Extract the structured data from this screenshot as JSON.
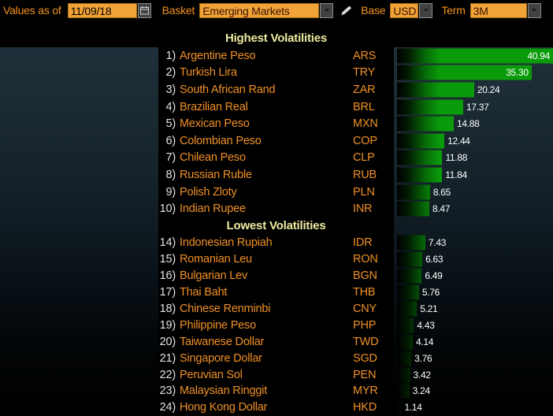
{
  "toolbar": {
    "values_as_of_label": "Values as of",
    "date_value": "11/09/18",
    "basket_label": "Basket",
    "basket_value": "Emerging Markets",
    "base_label": "Base",
    "base_value": "USD",
    "term_label": "Term",
    "term_value": "3M"
  },
  "icons": {
    "calendar": "calendar-icon",
    "basket_dropdown": "chevron-down-icon",
    "base_dropdown": "chevron-down-icon",
    "term_dropdown": "chevron-down-icon",
    "edit": "pencil-icon"
  },
  "colors": {
    "background": "#000000",
    "accent_orange_text": "#f09025",
    "field_orange": "#f2a338",
    "bar_green": "#0a9b0a",
    "section_title_yellow": "#eeeb9f",
    "value_text_white": "#ffffff",
    "rank_text": "#e3e3e3",
    "plot_panel_top": "#20303a"
  },
  "chart_data": {
    "type": "bar",
    "orientation": "horizontal",
    "xlim": [
      0,
      40.94
    ],
    "grid": false,
    "legend": false,
    "sections": [
      {
        "title": "Highest Volatilities",
        "rows": [
          {
            "rank": "1)",
            "name": "Argentine Peso",
            "code": "ARS",
            "value": 40.94,
            "value_label": "40.94"
          },
          {
            "rank": "2)",
            "name": "Turkish Lira",
            "code": "TRY",
            "value": 35.3,
            "value_label": "35.30"
          },
          {
            "rank": "3)",
            "name": "South African Rand",
            "code": "ZAR",
            "value": 20.24,
            "value_label": "20.24"
          },
          {
            "rank": "4)",
            "name": "Brazilian Real",
            "code": "BRL",
            "value": 17.37,
            "value_label": "17.37"
          },
          {
            "rank": "5)",
            "name": "Mexican Peso",
            "code": "MXN",
            "value": 14.88,
            "value_label": "14.88"
          },
          {
            "rank": "6)",
            "name": "Colombian Peso",
            "code": "COP",
            "value": 12.44,
            "value_label": "12.44"
          },
          {
            "rank": "7)",
            "name": "Chilean Peso",
            "code": "CLP",
            "value": 11.88,
            "value_label": "11.88"
          },
          {
            "rank": "8)",
            "name": "Russian Ruble",
            "code": "RUB",
            "value": 11.84,
            "value_label": "11.84"
          },
          {
            "rank": "9)",
            "name": "Polish Zloty",
            "code": "PLN",
            "value": 8.65,
            "value_label": "8.65"
          },
          {
            "rank": "10)",
            "name": "Indian Rupee",
            "code": "INR",
            "value": 8.47,
            "value_label": "8.47"
          }
        ]
      },
      {
        "title": "Lowest Volatilities",
        "rows": [
          {
            "rank": "14)",
            "name": "Indonesian Rupiah",
            "code": "IDR",
            "value": 7.43,
            "value_label": "7.43"
          },
          {
            "rank": "15)",
            "name": "Romanian Leu",
            "code": "RON",
            "value": 6.63,
            "value_label": "6.63"
          },
          {
            "rank": "16)",
            "name": "Bulgarian Lev",
            "code": "BGN",
            "value": 6.49,
            "value_label": "6.49"
          },
          {
            "rank": "17)",
            "name": "Thai Baht",
            "code": "THB",
            "value": 5.76,
            "value_label": "5.76"
          },
          {
            "rank": "18)",
            "name": "Chinese Renminbi",
            "code": "CNY",
            "value": 5.21,
            "value_label": "5.21"
          },
          {
            "rank": "19)",
            "name": "Philippine Peso",
            "code": "PHP",
            "value": 4.43,
            "value_label": "4.43"
          },
          {
            "rank": "20)",
            "name": "Taiwanese Dollar",
            "code": "TWD",
            "value": 4.14,
            "value_label": "4.14"
          },
          {
            "rank": "21)",
            "name": "Singapore Dollar",
            "code": "SGD",
            "value": 3.76,
            "value_label": "3.76"
          },
          {
            "rank": "22)",
            "name": "Peruvian Sol",
            "code": "PEN",
            "value": 3.42,
            "value_label": "3.42"
          },
          {
            "rank": "23)",
            "name": "Malaysian Ringgit",
            "code": "MYR",
            "value": 3.24,
            "value_label": "3.24"
          },
          {
            "rank": "24)",
            "name": "Hong Kong Dollar",
            "code": "HKD",
            "value": 1.14,
            "value_label": "1.14"
          }
        ]
      }
    ]
  }
}
